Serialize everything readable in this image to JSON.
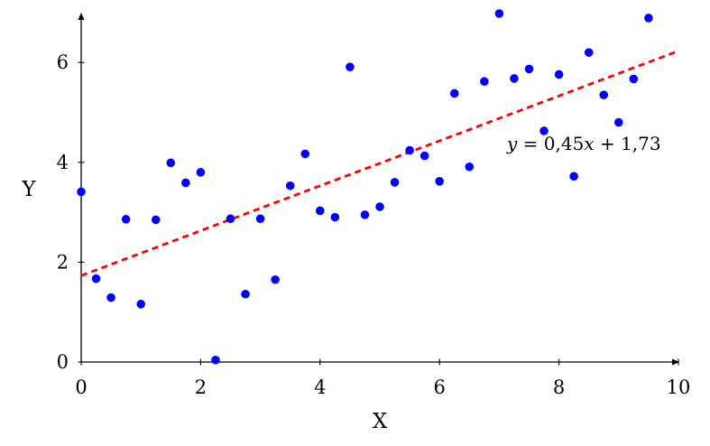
{
  "chart_data": {
    "type": "scatter",
    "xlabel": "X",
    "ylabel": "Y",
    "xlim": [
      0,
      10
    ],
    "ylim": [
      0,
      7
    ],
    "x_ticks": [
      "0",
      "2",
      "4",
      "6",
      "8",
      "10"
    ],
    "y_ticks": [
      "0",
      "2",
      "4",
      "6"
    ],
    "grid": false,
    "point_color": "#0000ff",
    "line_color": "#ff0000",
    "series": [
      {
        "points": [
          [
            0,
            3.41
          ],
          [
            0.25,
            1.67
          ],
          [
            0.5,
            1.29
          ],
          [
            0.75,
            2.86
          ],
          [
            1,
            1.16
          ],
          [
            1.25,
            2.85
          ],
          [
            1.5,
            3.99
          ],
          [
            1.75,
            3.59
          ],
          [
            2,
            3.8
          ],
          [
            2.25,
            0.04
          ],
          [
            2.5,
            2.87
          ],
          [
            2.75,
            1.36
          ],
          [
            3,
            2.87
          ],
          [
            3.25,
            1.65
          ],
          [
            3.5,
            3.53
          ],
          [
            3.75,
            4.17
          ],
          [
            4,
            3.03
          ],
          [
            4.25,
            2.9
          ],
          [
            4.5,
            5.91
          ],
          [
            4.75,
            2.95
          ],
          [
            5,
            3.11
          ],
          [
            5.25,
            3.6
          ],
          [
            5.5,
            4.24
          ],
          [
            5.75,
            4.13
          ],
          [
            6,
            3.62
          ],
          [
            6.25,
            5.38
          ],
          [
            6.5,
            3.91
          ],
          [
            6.75,
            5.62
          ],
          [
            7,
            6.98
          ],
          [
            7.25,
            5.68
          ],
          [
            7.5,
            5.87
          ],
          [
            7.75,
            4.63
          ],
          [
            8,
            5.76
          ],
          [
            8.25,
            3.72
          ],
          [
            8.5,
            6.2
          ],
          [
            8.75,
            5.35
          ],
          [
            9,
            4.8
          ],
          [
            9.25,
            5.67
          ],
          [
            9.5,
            6.89
          ]
        ]
      }
    ],
    "fit_line": {
      "slope": 0.45,
      "intercept": 1.73
    },
    "annotation": {
      "lhs": "y",
      "eq": " = ",
      "coef": "0,45",
      "var": "x",
      "rest": " + 1,73"
    }
  }
}
